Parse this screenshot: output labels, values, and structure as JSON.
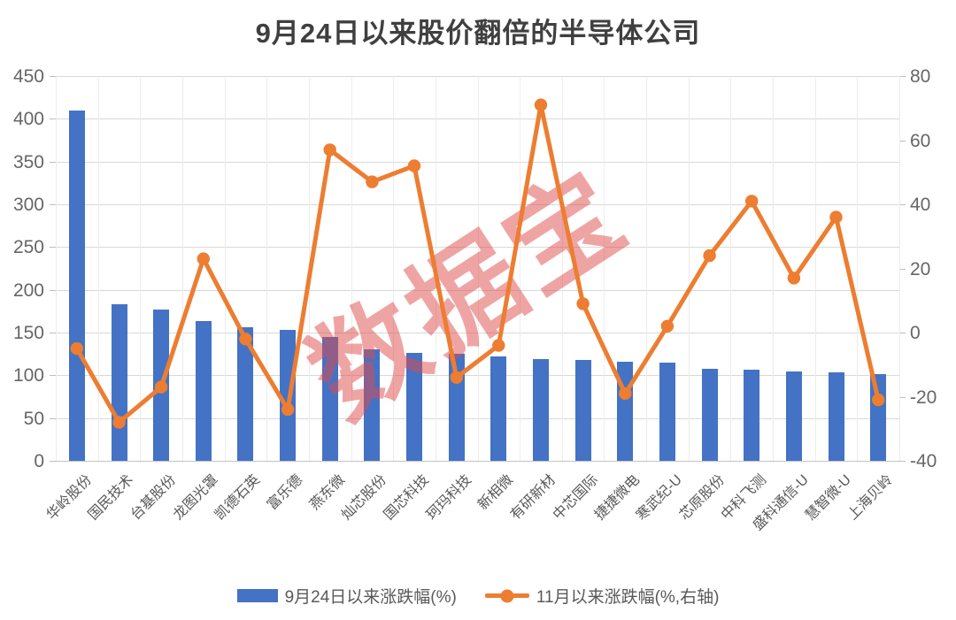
{
  "title": "9月24日以来股价翻倍的半导体公司",
  "watermark": "数据宝",
  "legend": {
    "bar_label": "9月24日以来涨跌幅(%)",
    "line_label": "11月以来涨跌幅(%,右轴)"
  },
  "colors": {
    "bar": "#4472C4",
    "line": "#ED7D31",
    "watermark": "#E04B4B",
    "grid": "#D9D9D9",
    "axis_text": "#666666",
    "label_text": "#595959",
    "title_text": "#3F3F3F"
  },
  "chart_data": {
    "type": "bar",
    "title": "9月24日以来股价翻倍的半导体公司",
    "categories": [
      "华岭股份",
      "国民技术",
      "台基股份",
      "龙图光罩",
      "凯德石英",
      "富乐德",
      "燕东微",
      "灿芯股份",
      "国芯科技",
      "珂玛科技",
      "新相微",
      "有研新材",
      "中芯国际",
      "捷捷微电",
      "寒武纪-U",
      "芯原股份",
      "中科飞测",
      "盛科通信-U",
      "慧智微-U",
      "上海贝岭"
    ],
    "series": [
      {
        "name": "9月24日以来涨跌幅(%)",
        "type": "bar",
        "axis": "left",
        "color": "#4472C4",
        "values": [
          410,
          183,
          177,
          164,
          156,
          153,
          145,
          130,
          126,
          125,
          122,
          119,
          118,
          116,
          115,
          108,
          107,
          105,
          103,
          101
        ]
      },
      {
        "name": "11月以来涨跌幅(%,右轴)",
        "type": "line",
        "axis": "right",
        "color": "#ED7D31",
        "values": [
          -5,
          -28,
          -17,
          23,
          -2,
          -24,
          57,
          47,
          52,
          -14,
          -4,
          71,
          9,
          -19,
          2,
          24,
          41,
          17,
          36,
          -21
        ]
      }
    ],
    "left_axis": {
      "min": 0,
      "max": 450,
      "step": 50,
      "ticks": [
        0,
        50,
        100,
        150,
        200,
        250,
        300,
        350,
        400,
        450
      ]
    },
    "right_axis": {
      "min": -40,
      "max": 80,
      "step": 20,
      "ticks": [
        -40,
        -20,
        0,
        20,
        40,
        60,
        80
      ]
    },
    "grid": true,
    "legend_position": "bottom",
    "xlabel": "",
    "ylabel": ""
  }
}
